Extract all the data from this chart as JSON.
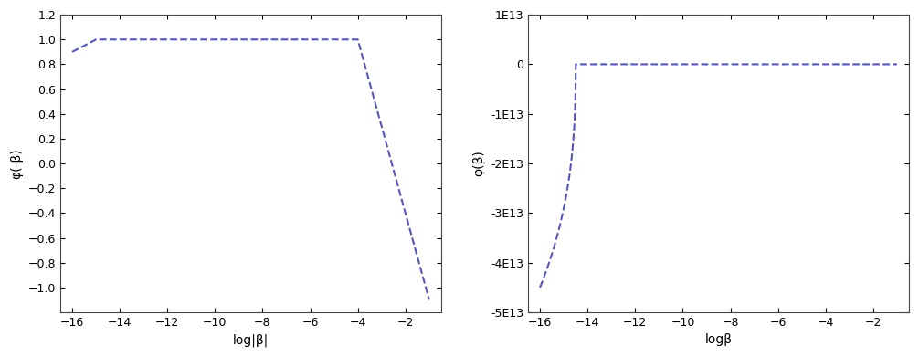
{
  "line_color": "#5555bb",
  "line_style": "--",
  "line_width": 1.5,
  "fig_width": 10.06,
  "fig_height": 3.91,
  "left_xlabel": "log|β|",
  "left_ylabel": "φ(-β)",
  "right_xlabel": "logβ",
  "right_ylabel": "φ(β)",
  "left_xlim": [
    -16.5,
    -0.5
  ],
  "left_ylim": [
    -1.2,
    1.2
  ],
  "left_xticks": [
    -16,
    -14,
    -12,
    -10,
    -8,
    -6,
    -4,
    -2
  ],
  "left_yticks": [
    -1.0,
    -0.8,
    -0.6,
    -0.4,
    -0.2,
    0.0,
    0.2,
    0.4,
    0.6,
    0.8,
    1.0,
    1.2
  ],
  "right_xlim": [
    -16.5,
    -0.5
  ],
  "right_ylim": [
    -50000000000000.0,
    10000000000000.0
  ],
  "right_xticks": [
    -16,
    -14,
    -12,
    -10,
    -8,
    -6,
    -4,
    -2
  ],
  "right_ytick_vals": [
    -50000000000000.0,
    -40000000000000.0,
    -30000000000000.0,
    -20000000000000.0,
    -10000000000000.0,
    0,
    10000000000000.0
  ],
  "right_ytick_labels": [
    "-5E13",
    "-4E13",
    "-3E13",
    "-2E13",
    "-1E13",
    "0",
    "1E13"
  ]
}
